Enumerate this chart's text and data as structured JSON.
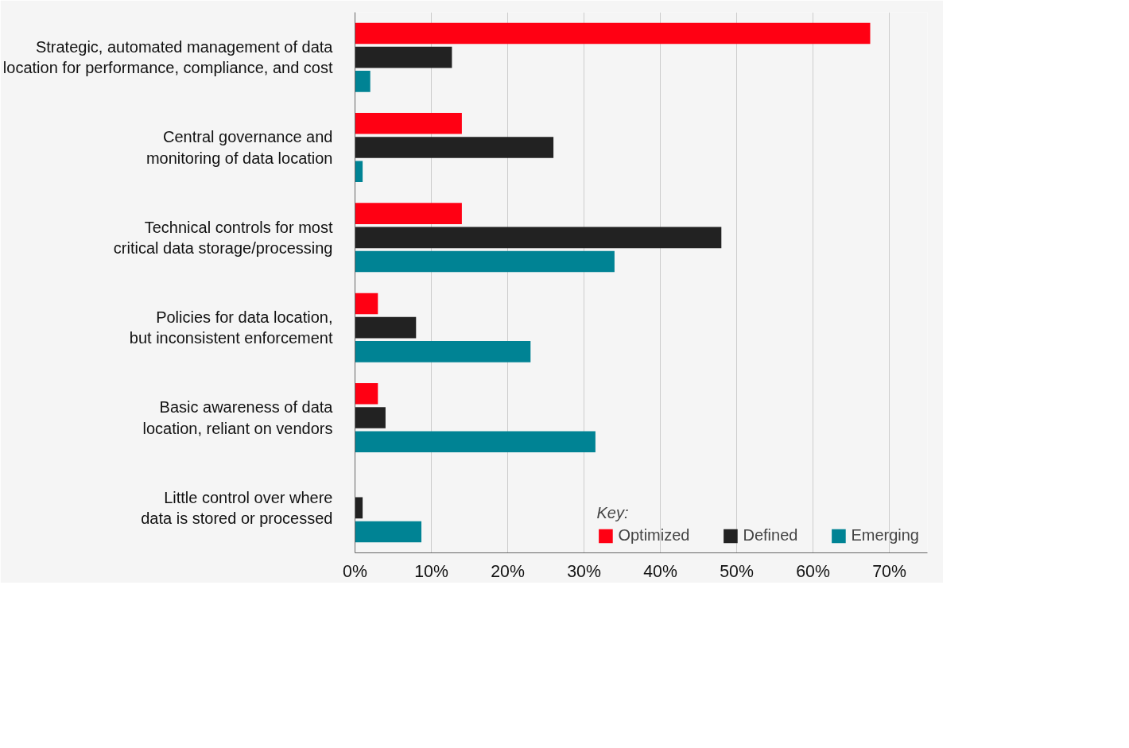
{
  "chart_data": {
    "type": "bar",
    "orientation": "horizontal",
    "categories": [
      "Strategic, automated management of data\nlocation for performance, compliance, and cost",
      "Central governance and\nmonitoring of data location",
      "Technical controls for most\ncritical data storage/processing",
      "Policies for data location,\nbut inconsistent enforcement",
      "Basic awareness of data\nlocation, reliant on vendors",
      "Little control over where\ndata is stored or processed"
    ],
    "series": [
      {
        "name": "Optimized",
        "color": "#ff0013",
        "values": [
          67.5,
          14,
          14,
          3,
          3,
          0
        ]
      },
      {
        "name": "Defined",
        "color": "#222222",
        "values": [
          12.7,
          26,
          48,
          8,
          4,
          1
        ]
      },
      {
        "name": "Emerging",
        "color": "#008394",
        "values": [
          2,
          1,
          34,
          23,
          31.5,
          8.7
        ]
      }
    ],
    "xlim": [
      0,
      75
    ],
    "xticks": [
      {
        "value": 0,
        "label": "0%"
      },
      {
        "value": 10,
        "label": "10%"
      },
      {
        "value": 20,
        "label": "20%"
      },
      {
        "value": 30,
        "label": "30%"
      },
      {
        "value": 40,
        "label": "40%"
      },
      {
        "value": 50,
        "label": "50%"
      },
      {
        "value": 60,
        "label": "60%"
      },
      {
        "value": 70,
        "label": "70%"
      }
    ],
    "grid": "x",
    "legend": "bottom right",
    "legend_title": "Key:"
  }
}
